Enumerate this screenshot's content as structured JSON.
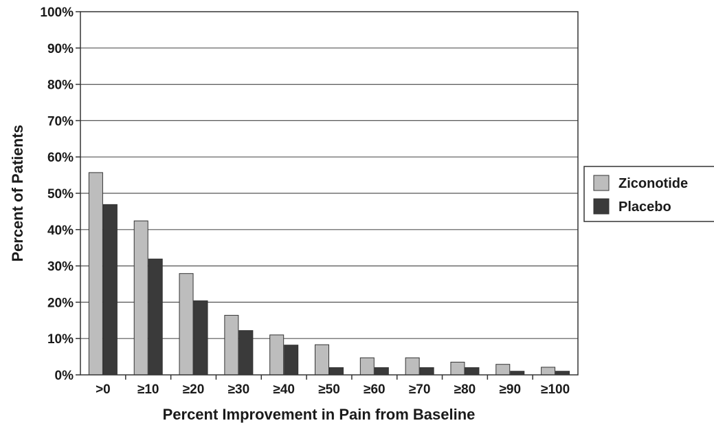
{
  "chart_data": {
    "type": "bar",
    "title": "",
    "xlabel": "Percent Improvement in Pain from Baseline",
    "ylabel": "Percent of Patients",
    "categories": [
      ">0",
      "≥10",
      "≥20",
      "≥30",
      "≥40",
      "≥50",
      "≥60",
      "≥70",
      "≥80",
      "≥90",
      "≥100"
    ],
    "series": [
      {
        "name": "Ziconotide",
        "color": "#bdbdbd",
        "values": [
          55.7,
          42.4,
          27.9,
          16.4,
          11.0,
          8.3,
          4.7,
          4.7,
          3.5,
          2.9,
          2.1
        ]
      },
      {
        "name": "Placebo",
        "color": "#3a3a3a",
        "values": [
          46.9,
          31.9,
          20.4,
          12.2,
          8.2,
          2.0,
          2.0,
          2.0,
          2.0,
          1.0,
          1.0
        ]
      }
    ],
    "ylim": [
      0,
      100
    ],
    "yticks": [
      "0%",
      "10%",
      "20%",
      "30%",
      "40%",
      "50%",
      "60%",
      "70%",
      "80%",
      "90%",
      "100%"
    ],
    "grid": true,
    "legend_position": "right"
  }
}
